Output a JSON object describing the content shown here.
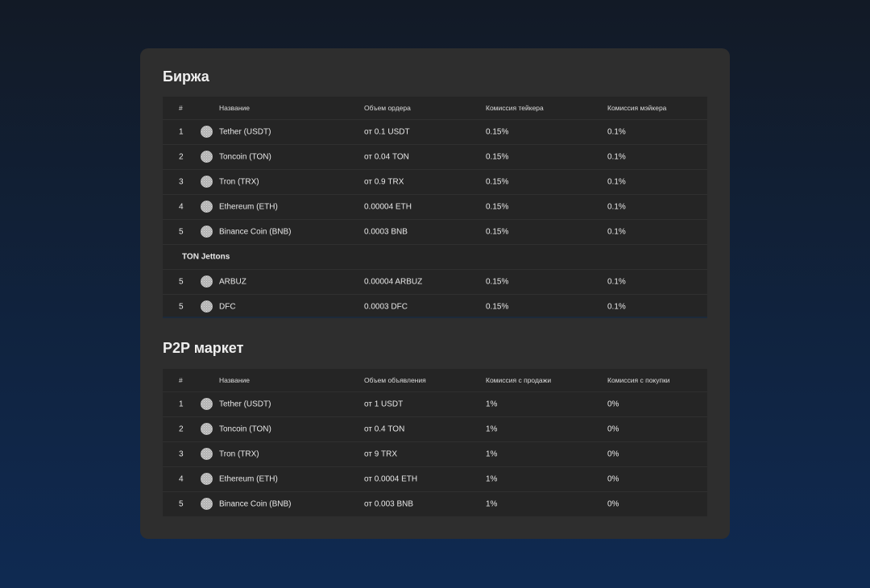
{
  "exchange": {
    "title": "Биржа",
    "headers": [
      "#",
      "Название",
      "Объем ордера",
      "Комиссия тейкера",
      "Комиссия мэйкера"
    ],
    "rows": [
      [
        "1",
        "Tether (USDT)",
        "от 0.1 USDT",
        "0.15%",
        "0.1%"
      ],
      [
        "2",
        "Toncoin (TON)",
        "от 0.04 TON",
        "0.15%",
        "0.1%"
      ],
      [
        "3",
        "Tron (TRX)",
        "от 0.9 TRX",
        "0.15%",
        "0.1%"
      ],
      [
        "4",
        "Ethereum (ETH)",
        "0.00004 ETH",
        "0.15%",
        "0.1%"
      ],
      [
        "5",
        "Binance Coin (BNB)",
        "0.0003 BNB",
        "0.15%",
        "0.1%"
      ]
    ],
    "jettons_title": "TON Jettons",
    "jetton_rows": [
      [
        "5",
        "ARBUZ",
        "0.00004 ARBUZ",
        "0.15%",
        "0.1%"
      ],
      [
        "5",
        "DFC",
        "0.0003 DFC",
        "0.15%",
        "0.1%"
      ]
    ]
  },
  "p2p": {
    "title": "P2P маркет",
    "headers": [
      "#",
      "Название",
      "Объем объявления",
      "Комиссия с продажи",
      "Комиссия с покупки"
    ],
    "rows": [
      [
        "1",
        "Tether (USDT)",
        "от 1 USDT",
        "1%",
        "0%"
      ],
      [
        "2",
        "Toncoin (TON)",
        "от 0.4 TON",
        "1%",
        "0%"
      ],
      [
        "3",
        "Tron (TRX)",
        "от 9 TRX",
        "1%",
        "0%"
      ],
      [
        "4",
        "Ethereum (ETH)",
        "от 0.0004 ETH",
        "1%",
        "0%"
      ],
      [
        "5",
        "Binance Coin (BNB)",
        "от 0.003 BNB",
        "1%",
        "0%"
      ]
    ]
  }
}
